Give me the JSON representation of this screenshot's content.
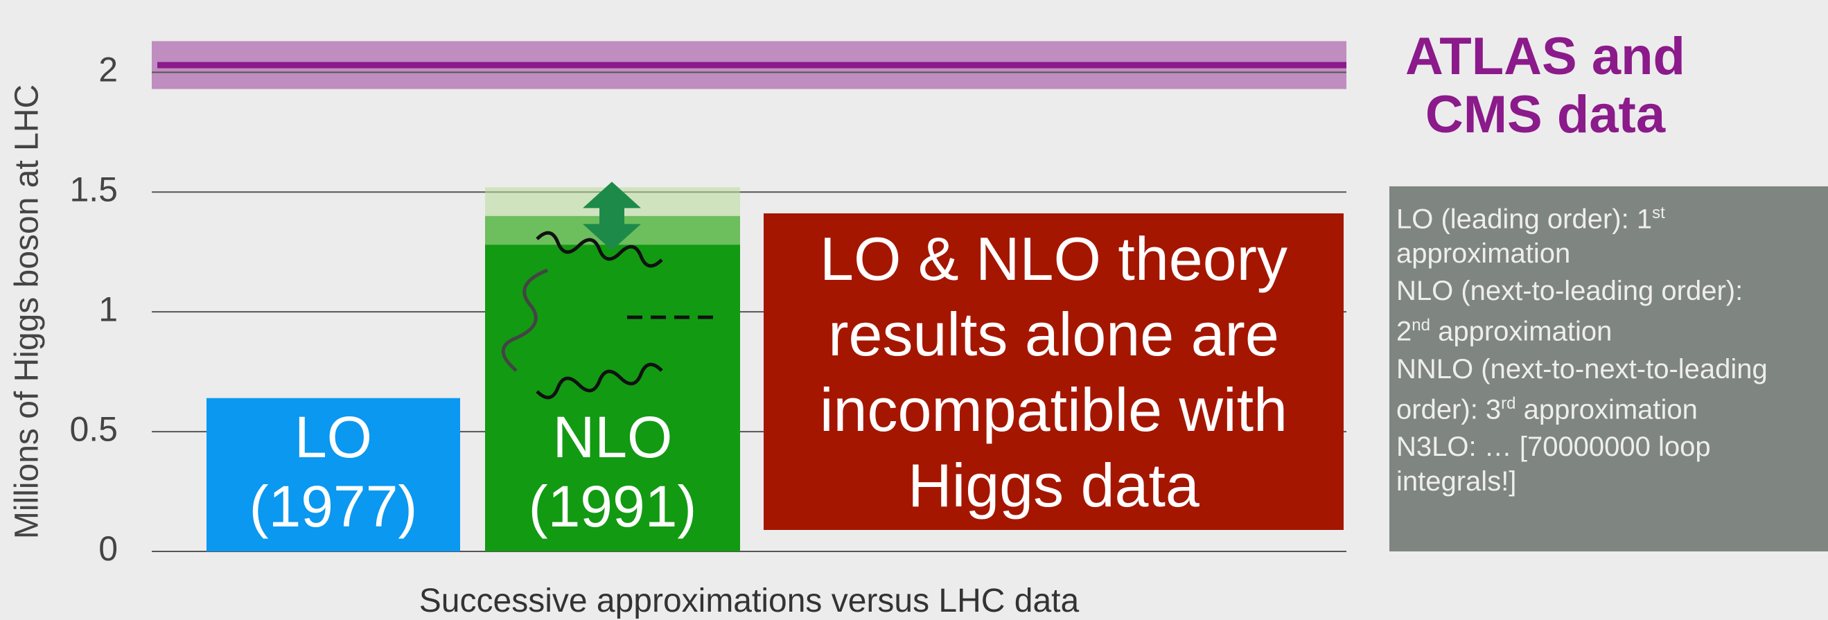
{
  "chart_data": {
    "type": "bar",
    "title": "ATLAS and CMS data",
    "categories": [
      "LO (1977)",
      "NLO (1991)"
    ],
    "values": [
      0.64,
      1.4
    ],
    "errors": [
      null,
      0.12
    ],
    "colors": [
      "#0a98f0",
      "#129a12"
    ],
    "data_band": {
      "value": 2.03,
      "error": 0.1,
      "color": "#8b1a8b"
    },
    "ylim": [
      0,
      2.16
    ],
    "yticks": [
      0,
      0.5,
      1,
      1.5,
      2
    ],
    "grid": true,
    "y_label": "Millions of Higgs boson at LHC",
    "x_label": "Successive approximations versus LHC data",
    "callout": "LO & NLO theory results alone are incompatible with Higgs data",
    "notes": [
      {
        "text": "LO (leading order): 1",
        "sup": "st",
        "rest": "approximation"
      },
      {
        "text": "NLO (next-to-leading order):",
        "sup": null,
        "rest": null
      },
      {
        "text": "2",
        "sup": "nd",
        "rest": "approximation"
      },
      {
        "text": "NNLO (next-to-next-to-leading order): 3",
        "sup": "rd",
        "rest": "approximation"
      },
      {
        "text": "N3LO: … [70000000 loop integrals!]",
        "sup": null,
        "rest": null
      }
    ]
  }
}
